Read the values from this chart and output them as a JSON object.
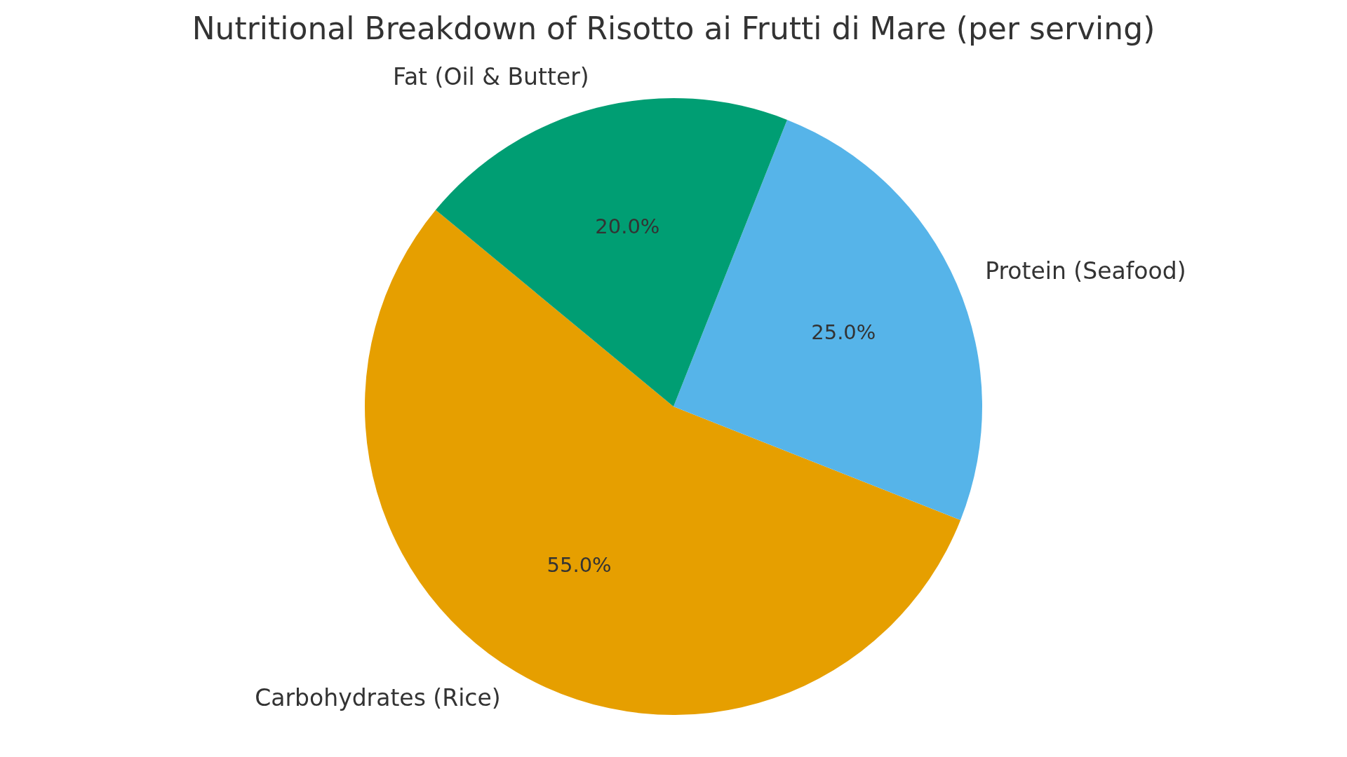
{
  "chart_data": {
    "type": "pie",
    "title": "Nutritional Breakdown of Risotto ai Frutti di Mare (per serving)",
    "categories": [
      "Carbohydrates (Rice)",
      "Protein (Seafood)",
      "Fat (Oil & Butter)"
    ],
    "values": [
      55,
      25,
      20
    ],
    "colors": [
      "#e69f00",
      "#56b4e9",
      "#009e73"
    ],
    "value_labels": [
      "55.0%",
      "25.0%",
      "20.0%"
    ]
  }
}
